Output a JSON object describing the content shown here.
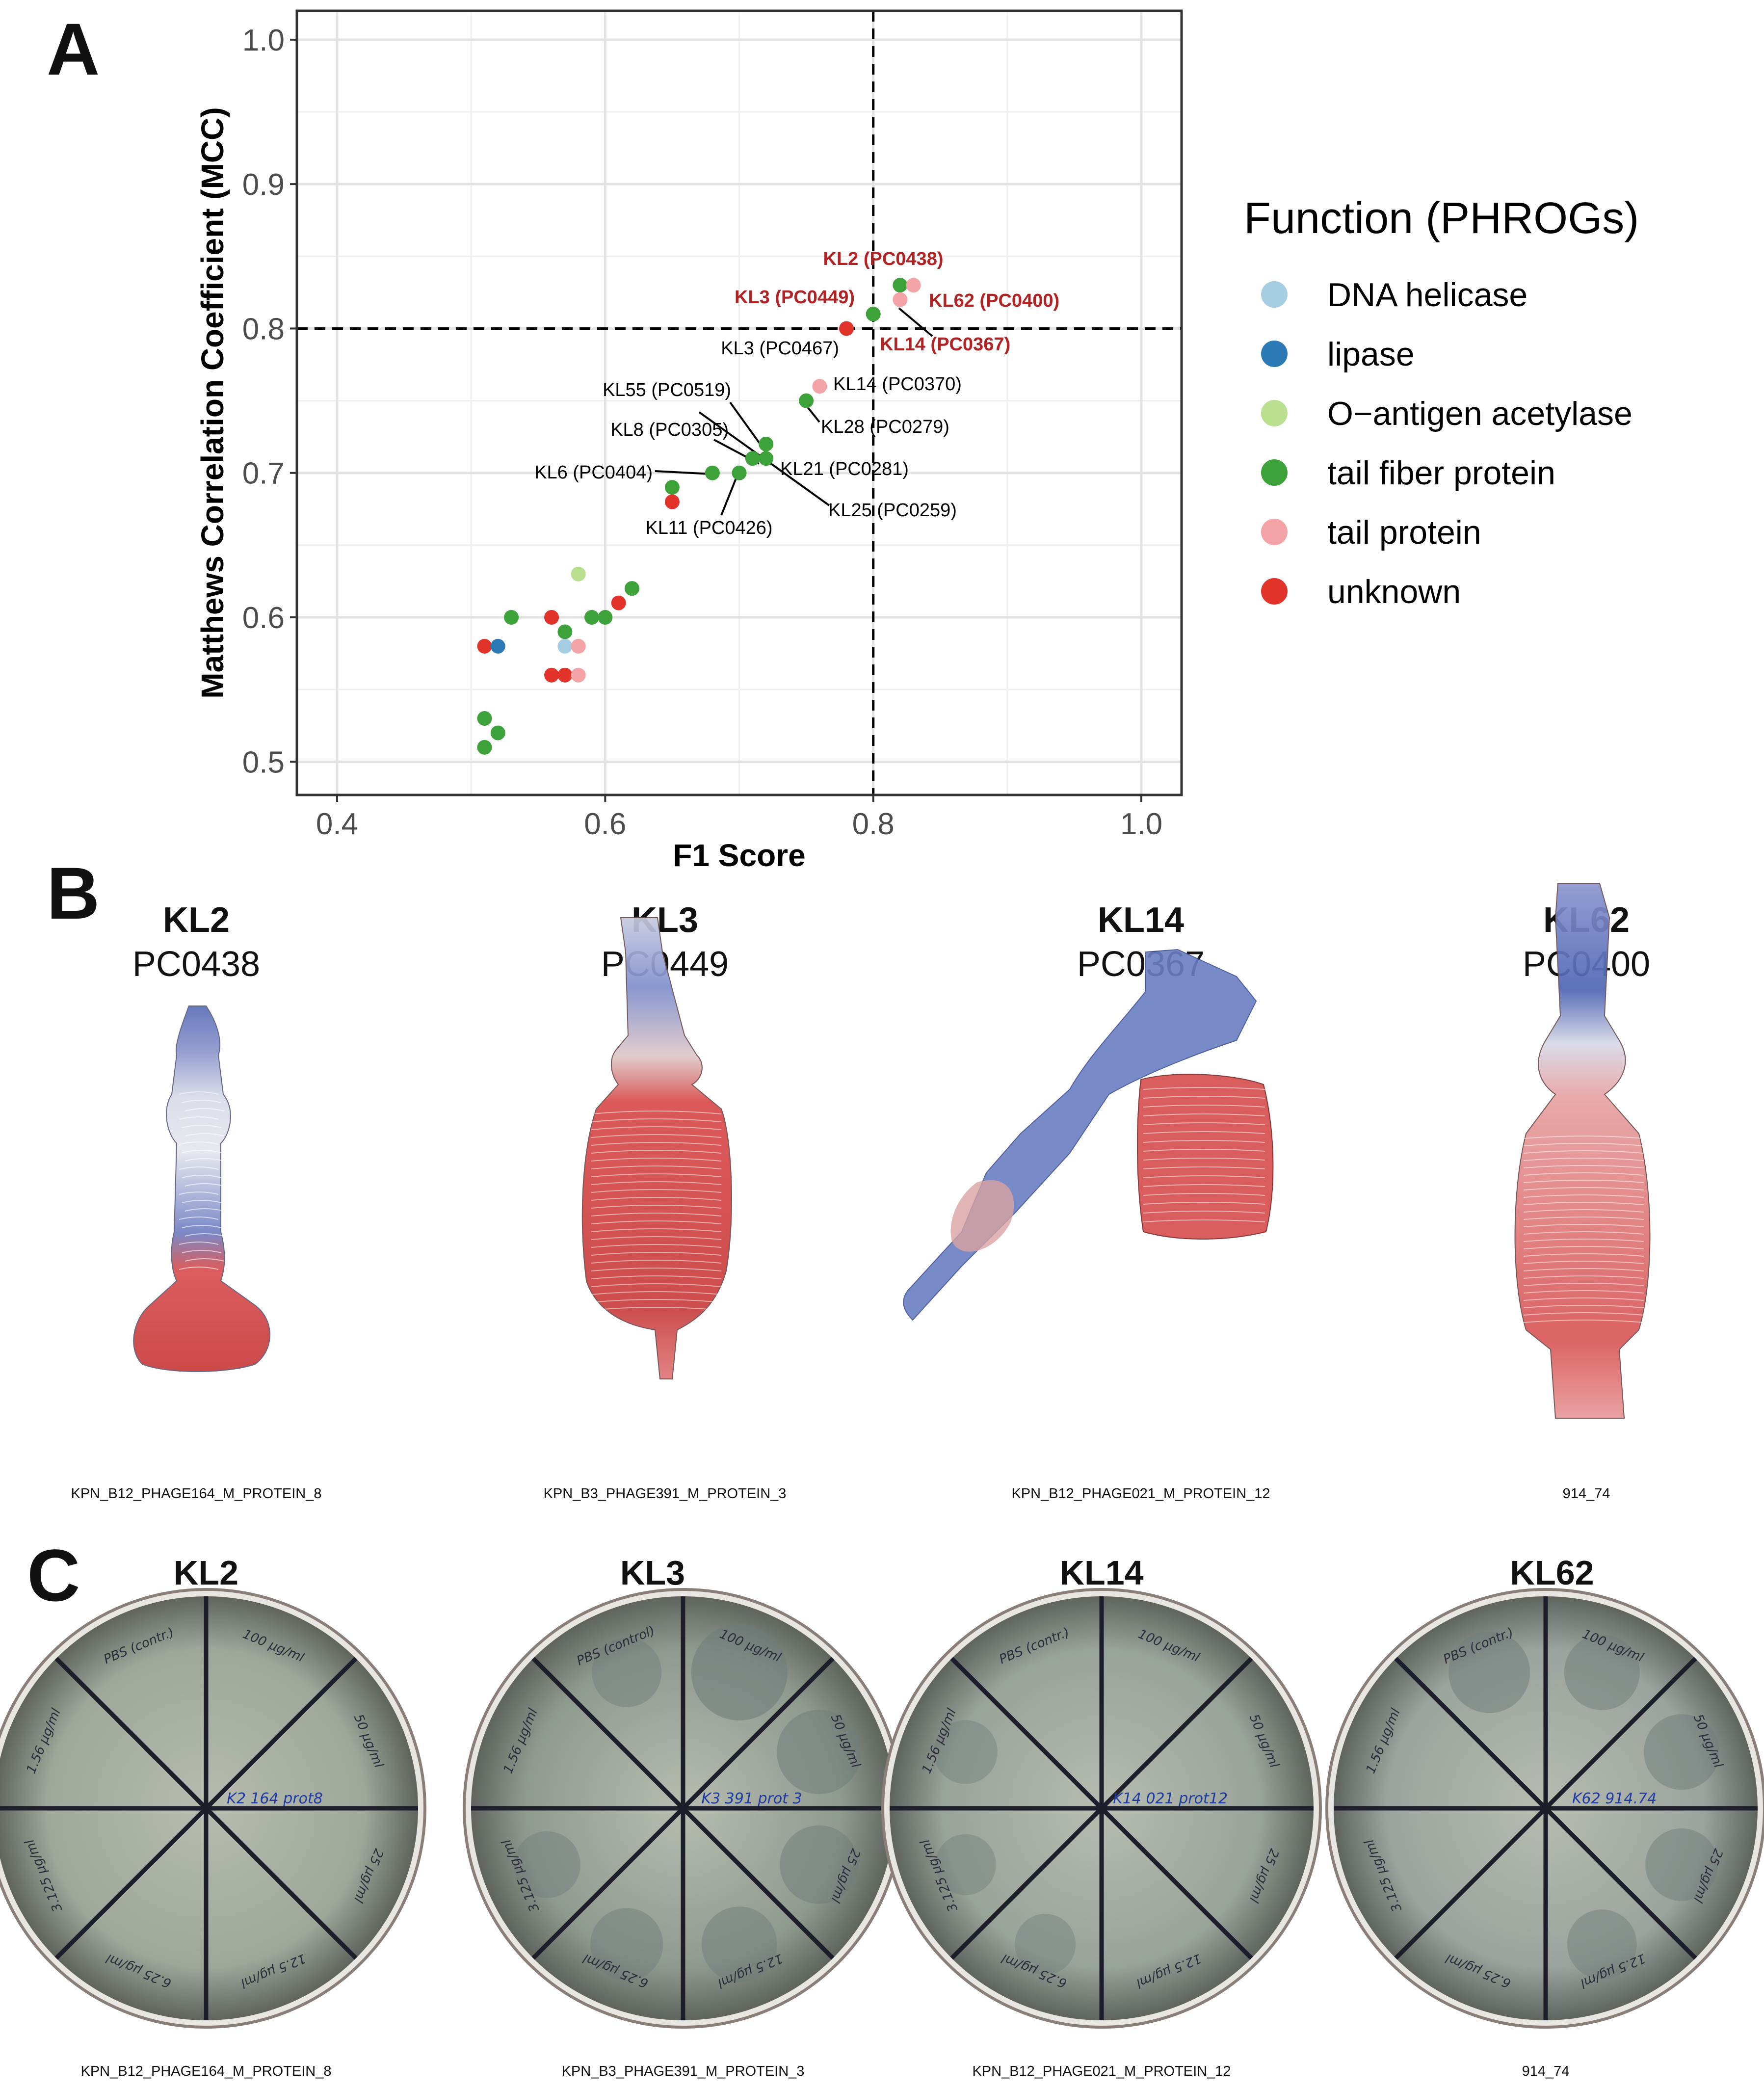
{
  "panels": {
    "a": "A",
    "b": "B",
    "c": "C"
  },
  "chart_data": {
    "type": "scatter",
    "xlabel": "F1 Score",
    "ylabel": "Matthews Correlation Coefficient (MCC)",
    "xlim": [
      0.37,
      1.03
    ],
    "ylim": [
      0.477,
      1.02
    ],
    "xticks": [
      0.4,
      0.6,
      0.8,
      1.0
    ],
    "xtick_labels": [
      "0.4",
      "0.6",
      "0.8",
      "1.0"
    ],
    "yticks": [
      0.5,
      0.6,
      0.7,
      0.8,
      0.9,
      1.0
    ],
    "ytick_labels": [
      "0.5",
      "0.6",
      "0.7",
      "0.8",
      "0.9",
      "1.0"
    ],
    "grid": true,
    "thresholds": {
      "x": 0.8,
      "y": 0.8
    },
    "legend": {
      "title": "Function (PHROGs)",
      "placement": "right",
      "entries": [
        {
          "name": "DNA helicase",
          "color": "#a6cee3"
        },
        {
          "name": "lipase",
          "color": "#2c7bb6"
        },
        {
          "name": "O−antigen acetylase",
          "color": "#b8e08f"
        },
        {
          "name": "tail fiber protein",
          "color": "#3ea23a"
        },
        {
          "name": "tail protein",
          "color": "#f4a3a6"
        },
        {
          "name": "unknown",
          "color": "#e2332b"
        }
      ]
    },
    "points": [
      {
        "x": 0.82,
        "y": 0.83,
        "category": "tail fiber protein"
      },
      {
        "x": 0.83,
        "y": 0.83,
        "category": "tail protein"
      },
      {
        "x": 0.82,
        "y": 0.82,
        "category": "tail protein"
      },
      {
        "x": 0.8,
        "y": 0.81,
        "category": "tail fiber protein"
      },
      {
        "x": 0.78,
        "y": 0.8,
        "category": "unknown"
      },
      {
        "x": 0.76,
        "y": 0.76,
        "category": "tail protein"
      },
      {
        "x": 0.75,
        "y": 0.75,
        "category": "tail fiber protein"
      },
      {
        "x": 0.72,
        "y": 0.72,
        "category": "tail fiber protein"
      },
      {
        "x": 0.72,
        "y": 0.71,
        "category": "tail fiber protein"
      },
      {
        "x": 0.71,
        "y": 0.71,
        "category": "tail fiber protein"
      },
      {
        "x": 0.68,
        "y": 0.7,
        "category": "tail fiber protein"
      },
      {
        "x": 0.7,
        "y": 0.7,
        "category": "tail fiber protein"
      },
      {
        "x": 0.65,
        "y": 0.69,
        "category": "tail fiber protein"
      },
      {
        "x": 0.65,
        "y": 0.68,
        "category": "unknown"
      },
      {
        "x": 0.58,
        "y": 0.63,
        "category": "O−antigen acetylase"
      },
      {
        "x": 0.62,
        "y": 0.62,
        "category": "tail fiber protein"
      },
      {
        "x": 0.61,
        "y": 0.61,
        "category": "unknown"
      },
      {
        "x": 0.53,
        "y": 0.6,
        "category": "tail fiber protein"
      },
      {
        "x": 0.56,
        "y": 0.6,
        "category": "unknown"
      },
      {
        "x": 0.59,
        "y": 0.6,
        "category": "tail fiber protein"
      },
      {
        "x": 0.6,
        "y": 0.6,
        "category": "tail fiber protein"
      },
      {
        "x": 0.57,
        "y": 0.59,
        "category": "tail fiber protein"
      },
      {
        "x": 0.51,
        "y": 0.58,
        "category": "unknown"
      },
      {
        "x": 0.52,
        "y": 0.58,
        "category": "lipase"
      },
      {
        "x": 0.57,
        "y": 0.58,
        "category": "DNA helicase"
      },
      {
        "x": 0.58,
        "y": 0.58,
        "category": "tail protein"
      },
      {
        "x": 0.56,
        "y": 0.56,
        "category": "unknown"
      },
      {
        "x": 0.57,
        "y": 0.56,
        "category": "unknown"
      },
      {
        "x": 0.58,
        "y": 0.56,
        "category": "tail protein"
      },
      {
        "x": 0.51,
        "y": 0.53,
        "category": "tail fiber protein"
      },
      {
        "x": 0.52,
        "y": 0.52,
        "category": "tail fiber protein"
      },
      {
        "x": 0.51,
        "y": 0.51,
        "category": "tail fiber protein"
      }
    ],
    "annotations": [
      {
        "text": "KL2 (PC0438)",
        "x": 0.82,
        "y": 0.83,
        "highlight": true
      },
      {
        "text": "KL62 (PC0400)",
        "x": 0.83,
        "y": 0.83,
        "highlight": true
      },
      {
        "text": "KL3 (PC0449)",
        "x": 0.8,
        "y": 0.81,
        "highlight": true
      },
      {
        "text": "KL14 (PC0367)",
        "x": 0.82,
        "y": 0.82,
        "highlight": true
      },
      {
        "text": "KL3 (PC0467)",
        "x": 0.78,
        "y": 0.8,
        "highlight": false
      },
      {
        "text": "KL14 (PC0370)",
        "x": 0.76,
        "y": 0.76,
        "highlight": false
      },
      {
        "text": "KL55 (PC0519)",
        "x": 0.72,
        "y": 0.71,
        "highlight": false
      },
      {
        "text": "KL28 (PC0279)",
        "x": 0.75,
        "y": 0.75,
        "highlight": false
      },
      {
        "text": "KL8 (PC0305)",
        "x": 0.72,
        "y": 0.72,
        "highlight": false
      },
      {
        "text": "KL21 (PC0281)",
        "x": 0.71,
        "y": 0.71,
        "highlight": false
      },
      {
        "text": "KL6 (PC0404)",
        "x": 0.68,
        "y": 0.7,
        "highlight": false
      },
      {
        "text": "KL25 (PC0259)",
        "x": 0.72,
        "y": 0.71,
        "highlight": false
      },
      {
        "text": "KL11 (PC0426)",
        "x": 0.7,
        "y": 0.7,
        "highlight": false
      }
    ],
    "highlight_color": "#b22222"
  },
  "structures": [
    {
      "serotype": "KL2",
      "cluster": "PC0438",
      "protein": "KPN_B12_PHAGE164_M_PROTEIN_8"
    },
    {
      "serotype": "KL3",
      "cluster": "PC0449",
      "protein": "KPN_B3_PHAGE391_M_PROTEIN_3"
    },
    {
      "serotype": "KL14",
      "cluster": "PC0367",
      "protein": "KPN_B12_PHAGE021_M_PROTEIN_12"
    },
    {
      "serotype": "KL62",
      "cluster": "PC0400",
      "protein": "914_74"
    }
  ],
  "plates": [
    {
      "serotype": "KL2",
      "protein": "KPN_B12_PHAGE164_M_PROTEIN_8",
      "plate_note": "K2 164 prot8",
      "sectors": [
        "PBS (contr.)",
        "100 µg/ml",
        "50 µg/ml",
        "25 µg/ml",
        "12.5 µg/ml",
        "6.25 µg/ml",
        "3.125 µg/ml",
        "1.56 µg/ml"
      ]
    },
    {
      "serotype": "KL3",
      "protein": "KPN_B3_PHAGE391_M_PROTEIN_3",
      "plate_note": "K3 391 prot 3",
      "sectors": [
        "PBS (control)",
        "100 µg/ml",
        "50 µg/ml",
        "25 µg/ml",
        "12.5 µg/ml",
        "6.25 µg/ml",
        "3.125 µg/ml",
        "1.56 µg/ml"
      ]
    },
    {
      "serotype": "KL14",
      "protein": "KPN_B12_PHAGE021_M_PROTEIN_12",
      "plate_note": "K14 021 prot12",
      "sectors": [
        "PBS (contr.)",
        "100 µg/ml",
        "50 µg/ml",
        "25 µg/ml",
        "12.5 µg/ml",
        "6.25 µg/ml",
        "3.125 µg/ml",
        "1.56 µg/ml"
      ]
    },
    {
      "serotype": "KL62",
      "protein": "914_74",
      "plate_note": "K62 914.74",
      "sectors": [
        "PBS (contr.)",
        "100 µg/ml",
        "50 µg/ml",
        "25 µg/ml",
        "12.5 µg/ml",
        "6.25 µg/ml",
        "3.125 µg/ml",
        "1.56 µg/ml"
      ]
    }
  ]
}
